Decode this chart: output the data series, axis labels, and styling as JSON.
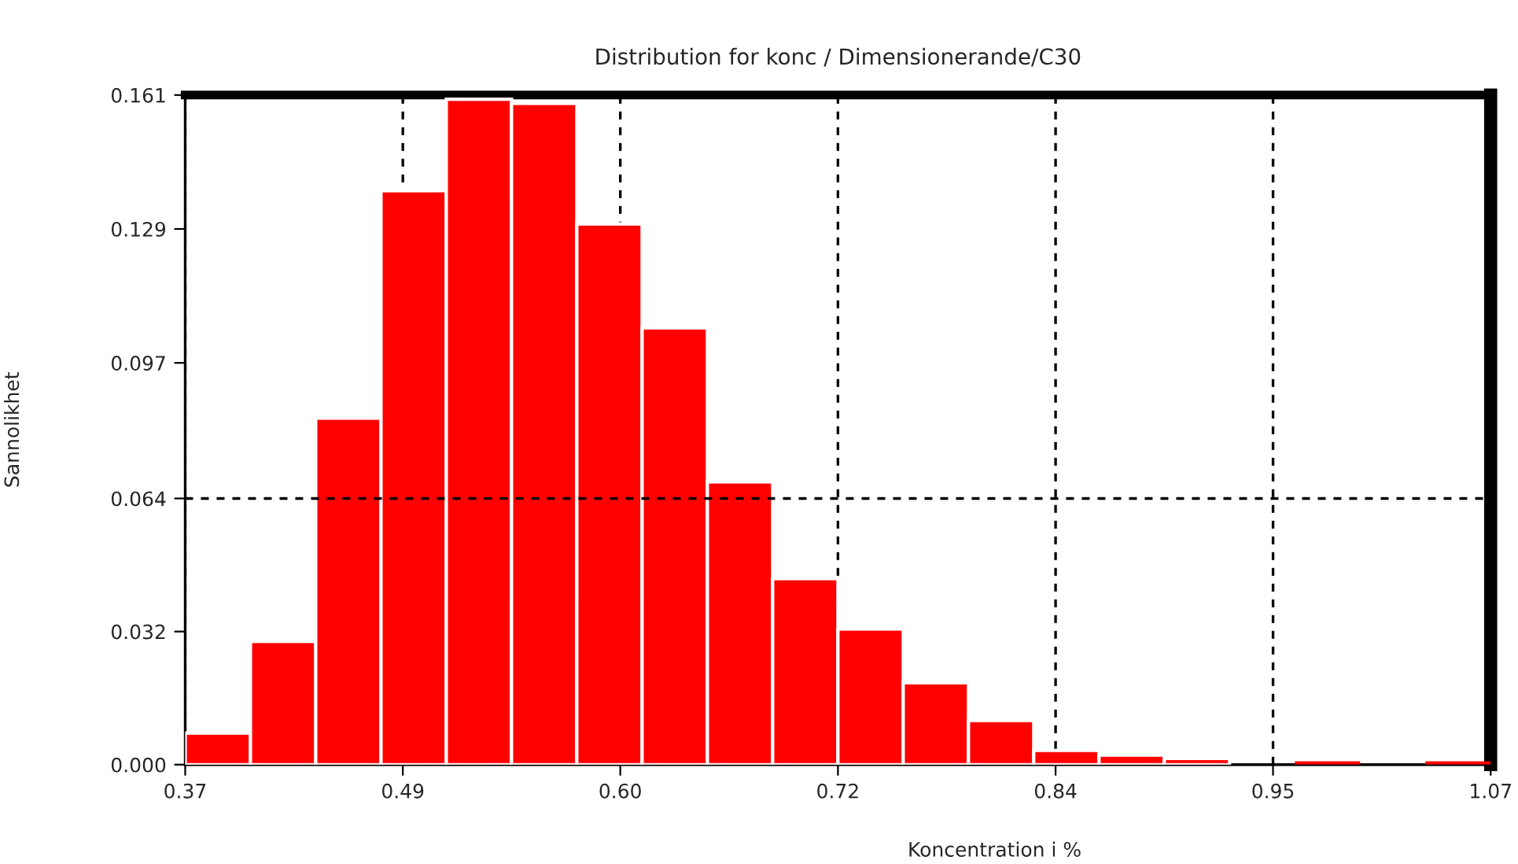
{
  "chart_data": {
    "type": "histogram",
    "title": "Distribution for konc / Dimensionerande/C30",
    "xlabel": "Koncentration i %",
    "ylabel": "Sannolikhet",
    "color": "#ff0000",
    "bins": [
      0.37,
      0.405,
      0.44,
      0.475,
      0.51,
      0.545,
      0.58,
      0.615,
      0.65,
      0.685,
      0.72,
      0.755,
      0.79,
      0.825,
      0.86,
      0.895,
      0.93,
      0.965,
      1.0,
      1.035,
      1.07
    ],
    "values": [
      0.0076,
      0.0296,
      0.0833,
      0.138,
      0.16,
      0.159,
      0.13,
      0.105,
      0.068,
      0.0447,
      0.0326,
      0.0197,
      0.0106,
      0.0034,
      0.0023,
      0.0015,
      0,
      0.0008,
      0,
      0.0008
    ],
    "xlim": [
      0.37,
      1.07
    ],
    "ylim": [
      0,
      0.161
    ],
    "xticks": [
      0.37,
      {
        "value": 0.4867,
        "label": "0.49"
      },
      {
        "value": 0.6033,
        "label": "0.60"
      },
      0.72,
      {
        "value": 0.8367,
        "label": "0.84"
      },
      {
        "value": 0.9533,
        "label": "0.95"
      },
      1.07
    ],
    "yticks": [
      {
        "value": 0,
        "label": "0.000"
      },
      0.032,
      0.064,
      {
        "value": 0.0966,
        "label": "0.097"
      },
      {
        "value": 0.1288,
        "label": "0.129"
      },
      0.161
    ],
    "grid": "x",
    "ref_lines": [
      {
        "axis": "y",
        "value": 0.064,
        "color": "#000000",
        "line_style": "dashed"
      }
    ]
  }
}
